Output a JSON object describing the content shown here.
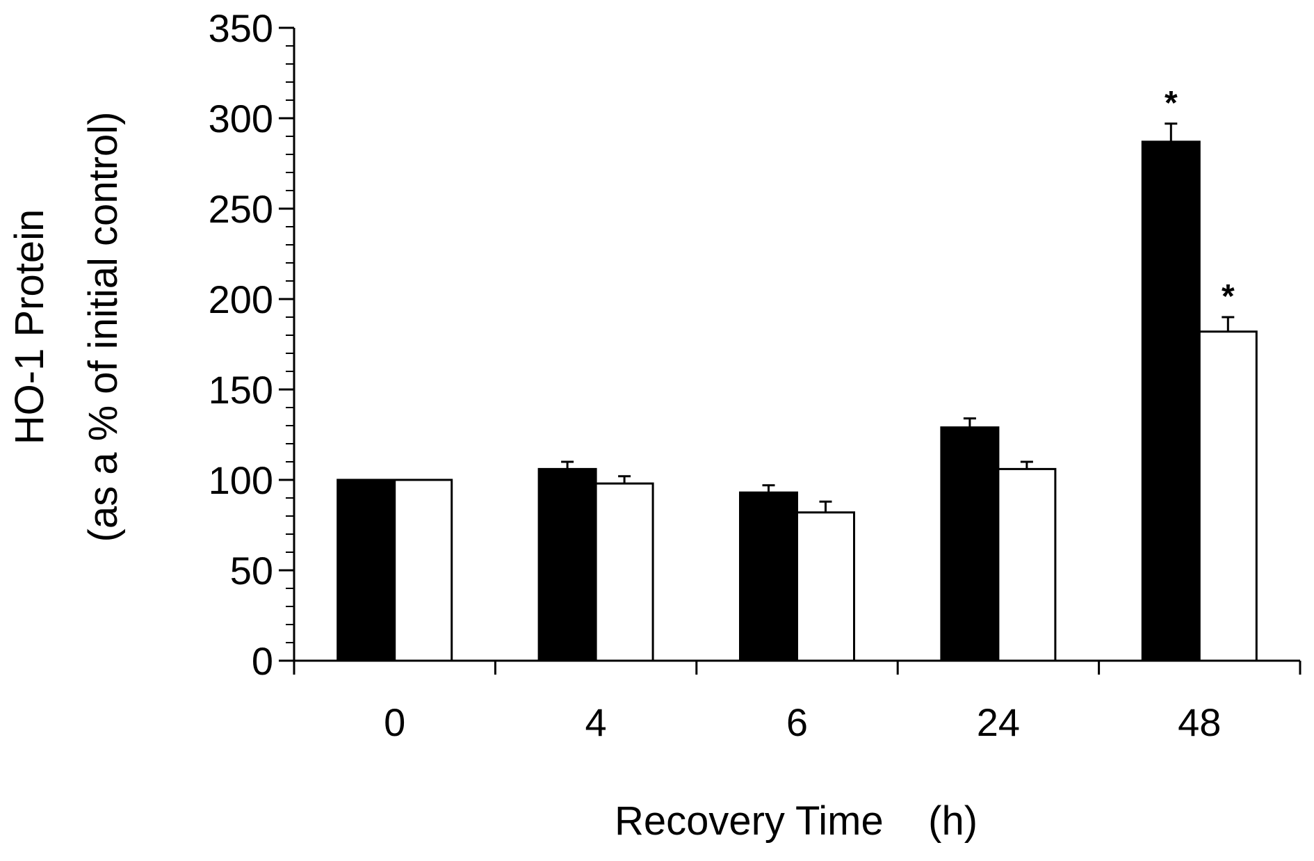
{
  "chart_data": {
    "type": "bar",
    "categories": [
      "0",
      "4",
      "6",
      "24",
      "48"
    ],
    "series": [
      {
        "fill": "#000000",
        "values": [
          100,
          106,
          93,
          129,
          287
        ],
        "errors": [
          0,
          4,
          4,
          5,
          10
        ]
      },
      {
        "fill": "#ffffff",
        "values": [
          100,
          98,
          82,
          106,
          182
        ],
        "errors": [
          0,
          4,
          6,
          4,
          8
        ]
      }
    ],
    "annotations": [
      {
        "category": "48",
        "series_index": 0,
        "text": "*"
      },
      {
        "category": "48",
        "series_index": 1,
        "text": "*"
      }
    ],
    "xlabel": "Recovery Time    (h)",
    "ylabel_line1": "HO-1 Protein",
    "ylabel_line2": "(as a % of initial control)",
    "ylim": [
      0,
      350
    ],
    "y_major_ticks": [
      0,
      50,
      100,
      150,
      200,
      250,
      300,
      350
    ],
    "y_minor_step": 10,
    "grid": false,
    "legend": "none"
  }
}
